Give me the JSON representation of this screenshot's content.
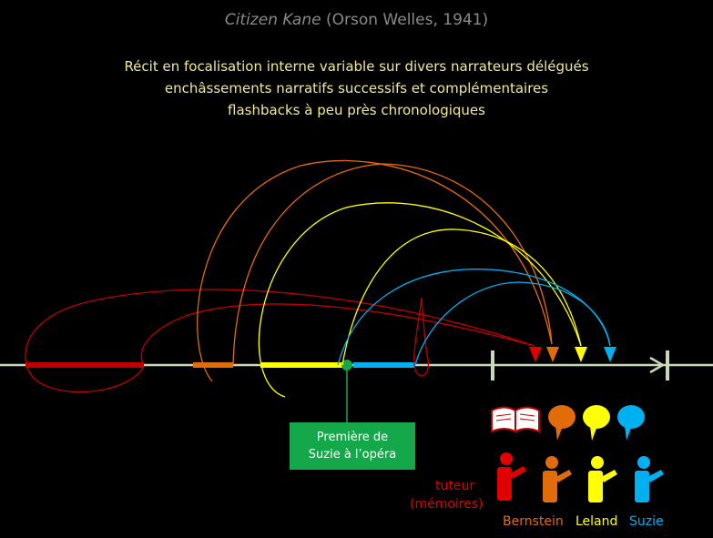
{
  "title": {
    "film": "Citizen Kane",
    "details": "(Orson Welles, 1941)"
  },
  "subtitle_lines": [
    "Récit en focalisation interne variable sur divers narrateurs délégués",
    "enchâssements narratifs successifs et complémentaires",
    "flashbacks à peu près chronologiques"
  ],
  "callout": {
    "line1": "Première de",
    "line2": "Suzie à l’opéra"
  },
  "narrators": [
    {
      "name": "tuteur",
      "sub": "(mémoires)",
      "color": "#e00000",
      "icon": "open-book-icon"
    },
    {
      "name": "Bernstein",
      "color": "#e36c0a",
      "icon": "speech-bubble-icon"
    },
    {
      "name": "Leland",
      "color": "#ffff00",
      "icon": "speech-bubble-icon"
    },
    {
      "name": "Suzie",
      "color": "#00b0f0",
      "icon": "speech-bubble-icon"
    }
  ],
  "colors": {
    "background": "#000000",
    "timeline": "#c8d8b8",
    "callout": "#15a84a",
    "title": "#8a8a8a",
    "subtitle": "#f0ea98"
  }
}
